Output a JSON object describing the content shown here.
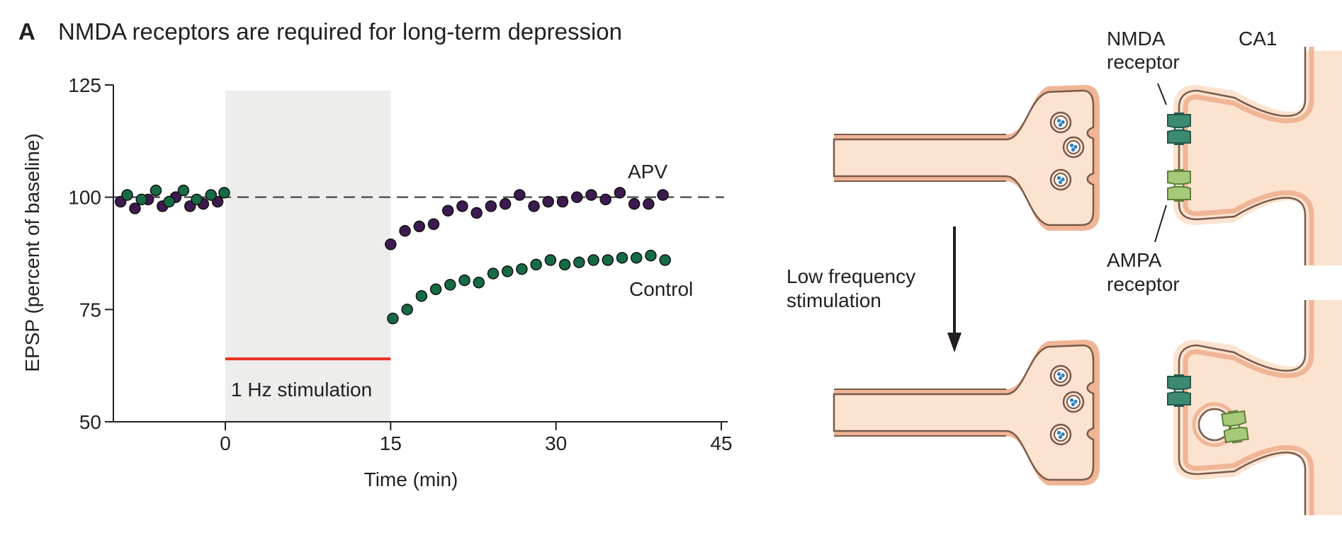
{
  "figure": {
    "panel_letter": "A",
    "title": "NMDA receptors are required for long-term depression"
  },
  "chart_data": {
    "type": "scatter",
    "title": "NMDA receptors are required for long-term depression",
    "xlabel": "Time (min)",
    "ylabel": "EPSP (percent of baseline)",
    "xlim": [
      -10,
      45
    ],
    "ylim": [
      50,
      125
    ],
    "xticks": [
      0,
      15,
      30,
      45
    ],
    "yticks": [
      50,
      75,
      100,
      125
    ],
    "baseline": 100,
    "stimulation_window": [
      0,
      15
    ],
    "stimulation_bar_y": 64,
    "stimulation_label": "1 Hz stimulation",
    "series": [
      {
        "name": "APV",
        "color": "#3d1a4f",
        "x": [
          -9.5,
          -8.2,
          -7.0,
          -5.7,
          -4.5,
          -3.2,
          -2.0,
          -0.7,
          15.0,
          16.3,
          17.6,
          18.9,
          20.2,
          21.5,
          22.8,
          24.1,
          25.4,
          26.7,
          28.0,
          29.3,
          30.6,
          31.9,
          33.2,
          34.5,
          35.8,
          37.1,
          38.4,
          39.7
        ],
        "y": [
          99,
          97.5,
          99.5,
          98,
          100,
          98,
          98.5,
          99,
          89.5,
          92.5,
          93.5,
          94,
          97,
          98,
          96.5,
          98,
          98.5,
          100.5,
          98,
          99,
          99,
          100,
          100.5,
          99.5,
          101,
          98.5,
          98.5,
          100.5
        ]
      },
      {
        "name": "Control",
        "color": "#166b45",
        "x": [
          -8.9,
          -7.6,
          -6.3,
          -5.1,
          -3.8,
          -2.6,
          -1.3,
          -0.1,
          15.2,
          16.5,
          17.8,
          19.1,
          20.4,
          21.7,
          23.0,
          24.3,
          25.6,
          26.9,
          28.2,
          29.5,
          30.8,
          32.1,
          33.4,
          34.7,
          36.0,
          37.3,
          38.6,
          39.9
        ],
        "y": [
          100.5,
          99.5,
          101.5,
          99,
          101.5,
          99.5,
          100.5,
          101,
          73,
          75,
          78,
          79.5,
          80.5,
          81.5,
          81,
          83,
          83.5,
          84,
          85,
          86,
          85,
          85.5,
          86,
          86,
          86.5,
          86.5,
          87,
          86
        ]
      }
    ]
  },
  "schematic": {
    "region_label": "CA1",
    "nmda_label_line1": "NMDA",
    "nmda_label_line2": "receptor",
    "ampa_label_line1": "AMPA",
    "ampa_label_line2": "receptor",
    "arrow_label_line1": "Low frequency",
    "arrow_label_line2": "stimulation",
    "colors": {
      "cytoplasm": "#fbe3cf",
      "membrane": "#7a5a4b",
      "membrane_rim": "#f0b596",
      "nmda": "#3d8a72",
      "ampa": "#a6c97a",
      "vesicle_dot": "#2d7fc1"
    }
  }
}
